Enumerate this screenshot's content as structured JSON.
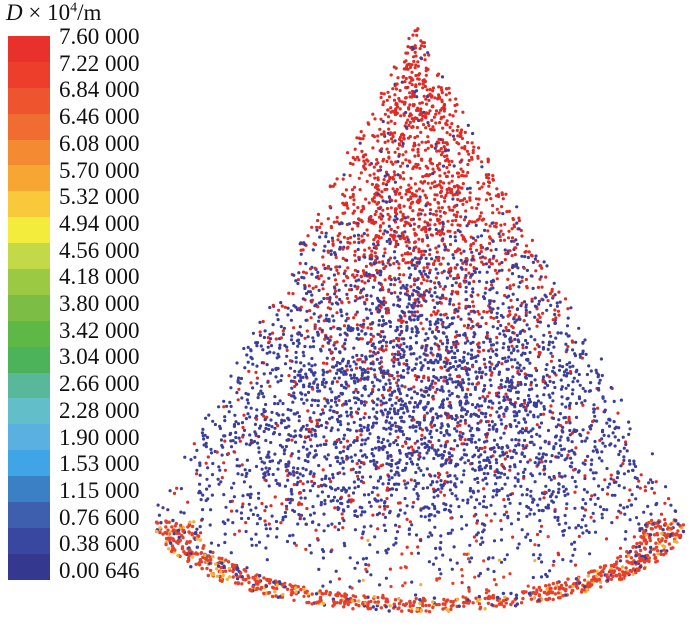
{
  "legend": {
    "variable": "D",
    "title_suffix": "× 10",
    "exponent": "4",
    "unit": "/m",
    "ticks": [
      "7.60 000",
      "7.22 000",
      "6.84 000",
      "6.46 000",
      "6.08 000",
      "5.70 000",
      "5.32 000",
      "4.94 000",
      "4.56 000",
      "4.18 000",
      "3.80 000",
      "3.42 000",
      "3.04 000",
      "2.66 000",
      "2.28 000",
      "1.90 000",
      "1.53 000",
      "1.15 000",
      "0.76 600",
      "0.38 600",
      "0.00 646"
    ],
    "colors": [
      "#e8312a",
      "#ec3e2b",
      "#ee552e",
      "#f06c30",
      "#f48a32",
      "#f7a633",
      "#f8c93a",
      "#f4ec3c",
      "#c4d948",
      "#9cc944",
      "#7cbe45",
      "#5db846",
      "#4db35a",
      "#59b79a",
      "#62bfc9",
      "#5ab0e0",
      "#3fa5e6",
      "#3b7fc4",
      "#3d5fae",
      "#3a47a0",
      "#34388f"
    ]
  },
  "scene": {
    "description_colors": {
      "top": "#e02a24",
      "mid": "#3c3f9a",
      "rim": "#e6402a",
      "edge_yellow": "#f1b13a"
    }
  }
}
